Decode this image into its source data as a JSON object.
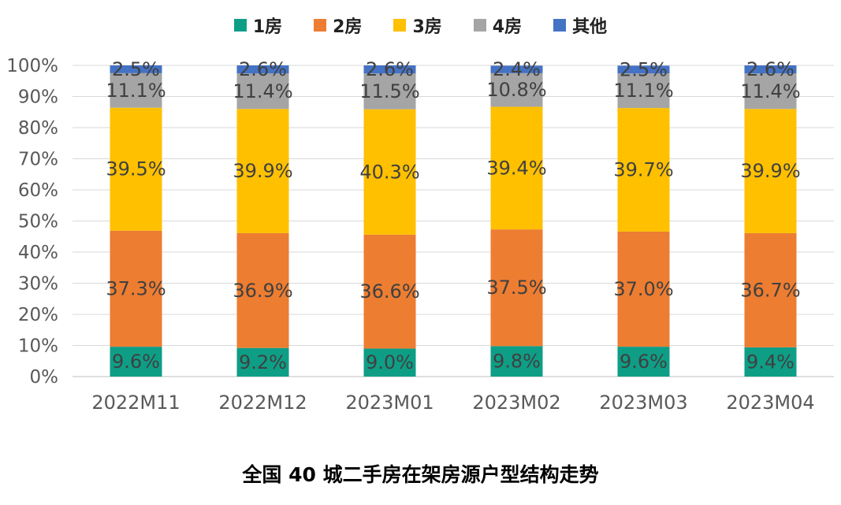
{
  "chart_data": {
    "type": "bar",
    "stacked": true,
    "categories": [
      "2022M11",
      "2022M12",
      "2023M01",
      "2023M02",
      "2023M03",
      "2023M04"
    ],
    "series": [
      {
        "name": "1房",
        "color": "#0E9E86",
        "values": [
          9.6,
          9.2,
          9.0,
          9.8,
          9.6,
          9.4
        ],
        "labels": [
          "9.6%",
          "9.2%",
          "9.0%",
          "9.8%",
          "9.6%",
          "9.4%"
        ]
      },
      {
        "name": "2房",
        "color": "#ED7D31",
        "values": [
          37.3,
          36.9,
          36.6,
          37.5,
          37.0,
          36.7
        ],
        "labels": [
          "37.3%",
          "36.9%",
          "36.6%",
          "37.5%",
          "37.0%",
          "36.7%"
        ]
      },
      {
        "name": "3房",
        "color": "#FFC000",
        "values": [
          39.5,
          39.9,
          40.3,
          39.4,
          39.7,
          39.9
        ],
        "labels": [
          "39.5%",
          "39.9%",
          "40.3%",
          "39.4%",
          "39.7%",
          "39.9%"
        ]
      },
      {
        "name": "4房",
        "color": "#A5A5A5",
        "values": [
          11.1,
          11.4,
          11.5,
          10.8,
          11.1,
          11.4
        ],
        "labels": [
          "11.1%",
          "11.4%",
          "11.5%",
          "10.8%",
          "11.1%",
          "11.4%"
        ]
      },
      {
        "name": "其他",
        "color": "#4472C4",
        "values": [
          2.5,
          2.6,
          2.6,
          2.4,
          2.5,
          2.6
        ],
        "labels": [
          "2.5%",
          "2.6%",
          "2.6%",
          "2.4%",
          "2.5%",
          "2.6%"
        ]
      }
    ],
    "y_ticks": [
      "0%",
      "10%",
      "20%",
      "30%",
      "40%",
      "50%",
      "60%",
      "70%",
      "80%",
      "90%",
      "100%"
    ],
    "ylim": [
      0,
      100
    ],
    "grid": true,
    "legend_position": "top-center",
    "title": "全国 40 城二手房在架房源户型结构走势"
  }
}
